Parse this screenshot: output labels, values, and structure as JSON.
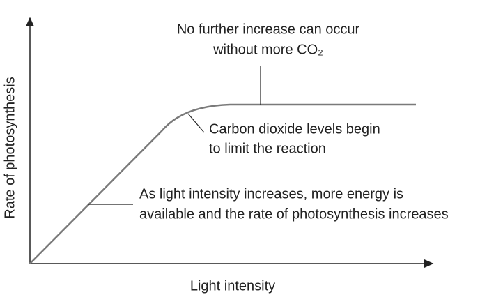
{
  "axes": {
    "x_label": "Light intensity",
    "y_label": "Rate of photosynthesis"
  },
  "annotations": [
    {
      "lines": [
        "No further increase can occur",
        "without more CO₂"
      ]
    },
    {
      "lines": [
        "Carbon dioxide levels begin",
        "to limit the reaction"
      ]
    },
    {
      "lines": [
        "As light intensity increases, more energy is",
        "available and the rate of photosynthesis increases"
      ]
    }
  ]
}
